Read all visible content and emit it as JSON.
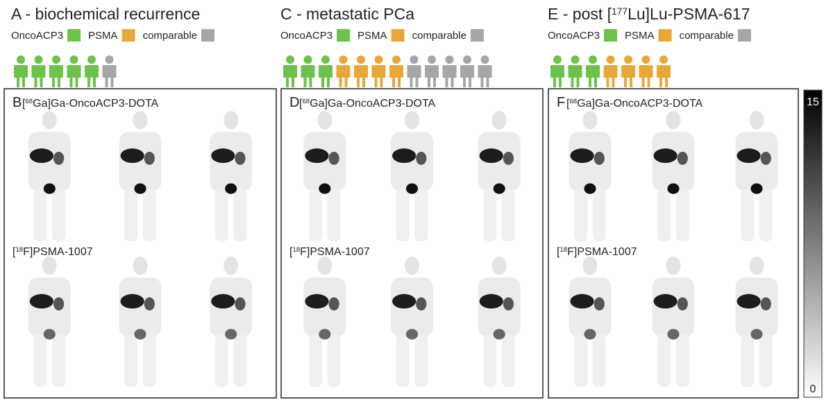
{
  "panels": [
    {
      "title": {
        "pre": "A - biochemical recurrence"
      },
      "groups": [
        {
          "label": "OncoACP3",
          "color": "#6cc24a",
          "count": 5
        },
        {
          "label": "PSMA",
          "color": "#e8a838",
          "count": 0
        },
        {
          "label": "comparable",
          "color": "#a6a6a6",
          "count": 1
        }
      ],
      "letter": "B",
      "image_labels": [
        {
          "pre": "[",
          "sup": "68",
          "post": "Ga]Ga-OncoACP3-DOTA"
        },
        {
          "pre": "[",
          "sup": "18",
          "post": "F]PSMA-1007"
        }
      ]
    },
    {
      "title": {
        "pre": "C - metastatic PCa"
      },
      "groups": [
        {
          "label": "OncoACP3",
          "color": "#6cc24a",
          "count": 3
        },
        {
          "label": "PSMA",
          "color": "#e8a838",
          "count": 4
        },
        {
          "label": "comparable",
          "color": "#a6a6a6",
          "count": 5
        }
      ],
      "letter": "D",
      "image_labels": [
        {
          "pre": "[",
          "sup": "68",
          "post": "Ga]Ga-OncoACP3-DOTA"
        },
        {
          "pre": "[",
          "sup": "18",
          "post": "F]PSMA-1007"
        }
      ]
    },
    {
      "title": {
        "pre": "E - post [",
        "sup": "177",
        "post": "Lu]Lu-PSMA-617"
      },
      "groups": [
        {
          "label": "OncoACP3",
          "color": "#6cc24a",
          "count": 3
        },
        {
          "label": "PSMA",
          "color": "#e8a838",
          "count": 4
        },
        {
          "label": "comparable",
          "color": "#a6a6a6",
          "count": 0
        }
      ],
      "letter": "F",
      "image_labels": [
        {
          "pre": "[",
          "sup": "68",
          "post": "Ga]Ga-OncoACP3-DOTA"
        },
        {
          "pre": "[",
          "sup": "18",
          "post": "F]PSMA-1007"
        }
      ]
    }
  ],
  "colorbar": {
    "max": "15",
    "min": "0"
  }
}
